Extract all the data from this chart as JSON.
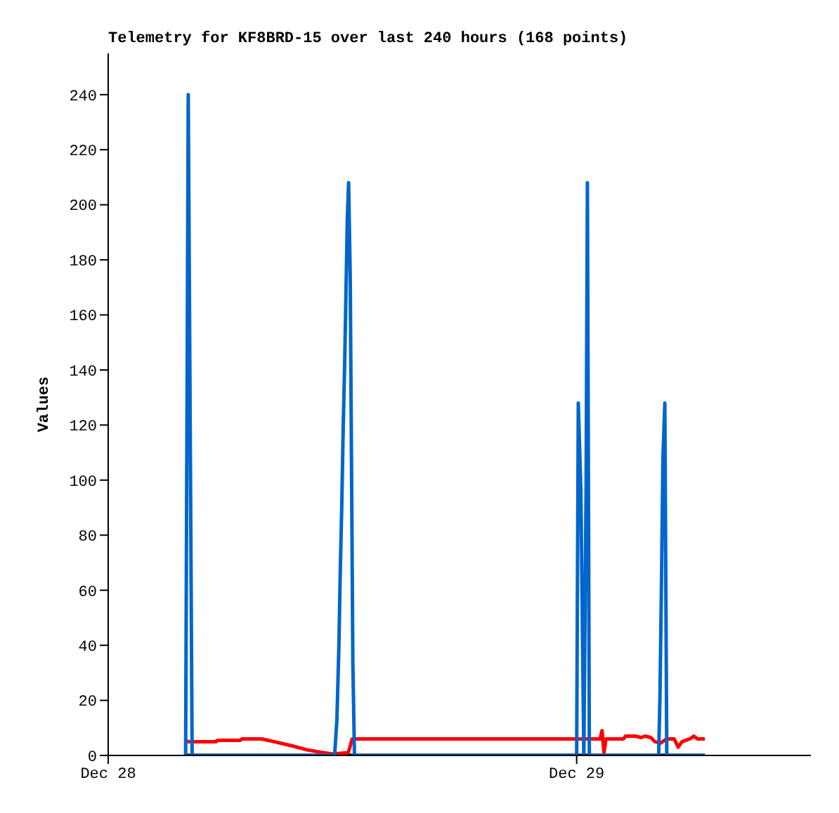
{
  "chart_data": {
    "type": "line",
    "title": "Telemetry for KF8BRD-15 over last 240 hours (168 points)",
    "ylabel": "Values",
    "xlim": [
      "--12-28",
      "--12-29T12:00"
    ],
    "xticks": [
      {
        "value": "--12-28",
        "label": "Dec 28"
      },
      {
        "value": "--12-29",
        "label": "Dec 29"
      }
    ],
    "ylim": [
      0,
      255
    ],
    "yticks": [
      0,
      20,
      40,
      60,
      80,
      100,
      120,
      140,
      160,
      180,
      200,
      220,
      240
    ],
    "marker": "none",
    "line_style": "solid",
    "series": [
      {
        "color": "#000000",
        "x": [
          "--12-28T03:58",
          "--12-29T06:34"
        ],
        "values": [
          0,
          0
        ]
      },
      {
        "color": "#ff0000",
        "x": [
          "--12-28T03:58",
          "--12-28T04:06",
          "--12-28T05:32",
          "--12-28T05:36",
          "--12-28T06:46",
          "--12-28T06:51",
          "--12-28T07:52",
          "--12-28T08:30",
          "--12-28T09:24",
          "--12-28T10:12",
          "--12-28T11:00",
          "--12-28T11:30",
          "--12-28T12:18",
          "--12-28T12:30",
          "--12-29T01:12",
          "--12-29T01:18",
          "--12-29T01:24",
          "--12-29T01:30",
          "--12-29T02:24",
          "--12-29T02:30",
          "--12-29T03:00",
          "--12-29T03:18",
          "--12-29T03:30",
          "--12-29T03:48",
          "--12-29T04:00",
          "--12-29T04:18",
          "--12-29T04:36",
          "--12-29T05:00",
          "--12-29T05:12",
          "--12-29T05:24",
          "--12-29T05:48",
          "--12-29T06:00",
          "--12-29T06:12",
          "--12-29T06:34"
        ],
        "values": [
          5.5,
          5,
          5,
          5.5,
          5.5,
          6,
          6,
          5,
          3.5,
          2,
          1,
          0.5,
          1,
          6,
          6,
          9,
          1,
          6,
          6,
          7,
          7,
          6.5,
          7,
          6.5,
          5,
          4.5,
          6,
          6,
          3,
          5,
          6,
          7,
          6,
          6
        ]
      },
      {
        "color": "#0066cc",
        "x": [
          "--12-28T03:58",
          "--12-28T04:06",
          "--12-28T04:12",
          "--12-28T04:18",
          "--12-28T11:36",
          "--12-28T11:43",
          "--12-28T11:49",
          "--12-28T11:53",
          "--12-28T11:58",
          "--12-28T12:02",
          "--12-28T12:07",
          "--12-28T12:11",
          "--12-28T12:15",
          "--12-28T12:19",
          "--12-28T12:24",
          "--12-28T12:28",
          "--12-28T12:32",
          "--12-28T12:37",
          "--12-29T00:00",
          "--12-29T00:05",
          "--12-29T00:13",
          "--12-29T00:19",
          "--12-29T00:22",
          "--12-29T00:29",
          "--12-29T00:33",
          "--12-29T00:39",
          "--12-29T04:12",
          "--12-29T04:16",
          "--12-29T04:21",
          "--12-29T04:25",
          "--12-29T04:31",
          "--12-29T04:37",
          "--12-29T06:34"
        ],
        "values": [
          0,
          240,
          120,
          0,
          0,
          13,
          39,
          65,
          91,
          117,
          143,
          169,
          195,
          208,
          173,
          104,
          34,
          0,
          0,
          128,
          96,
          32,
          0,
          97,
          208,
          0,
          0,
          21,
          65,
          107,
          128,
          0,
          0
        ]
      }
    ]
  }
}
